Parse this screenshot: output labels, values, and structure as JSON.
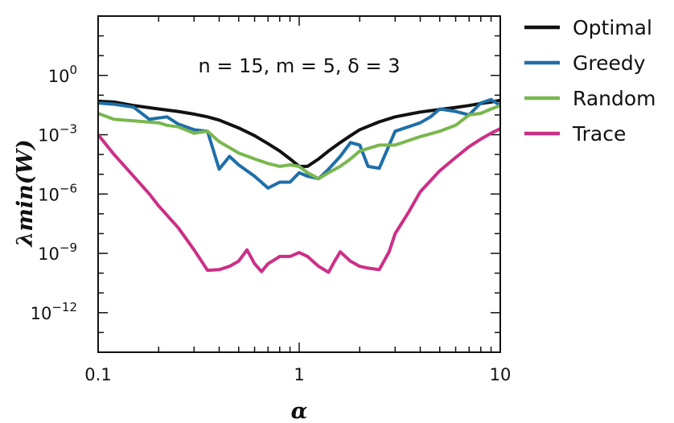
{
  "chart_data": {
    "type": "line",
    "xscale": "log",
    "yscale": "log",
    "xlim": [
      0.1,
      10
    ],
    "ylim": [
      1e-14,
      1000.0
    ],
    "xlabel": "α",
    "ylabel": "λmin(W)",
    "xticks": [
      {
        "value": 0.1,
        "label": "0.1"
      },
      {
        "value": 1,
        "label": "1"
      },
      {
        "value": 10,
        "label": "10"
      }
    ],
    "yticks": [
      {
        "value": 1,
        "mantissa": "10",
        "exponent": "0"
      },
      {
        "value": 0.001,
        "mantissa": "10",
        "exponent": "−3"
      },
      {
        "value": 1e-06,
        "mantissa": "10",
        "exponent": "−6"
      },
      {
        "value": 1e-09,
        "mantissa": "10",
        "exponent": "−9"
      },
      {
        "value": 1e-12,
        "mantissa": "10",
        "exponent": "−12"
      }
    ],
    "annotation": "n = 15, m = 5, δ = 3",
    "legend_position": "outside-right-top",
    "series": [
      {
        "name": "Optimal",
        "color": "#111111",
        "x": [
          0.1,
          0.12,
          0.15,
          0.2,
          0.25,
          0.3,
          0.35,
          0.4,
          0.5,
          0.6,
          0.7,
          0.8,
          0.9,
          1.0,
          1.1,
          1.25,
          1.4,
          1.6,
          1.8,
          2.0,
          2.5,
          3.0,
          4.0,
          5.0,
          6.0,
          7.0,
          8.0,
          9.0,
          10.0
        ],
        "y": [
          0.05,
          0.045,
          0.03,
          0.02,
          0.015,
          0.011,
          0.008,
          0.0055,
          0.0022,
          0.0009,
          0.00035,
          0.00015,
          6e-05,
          2.5e-05,
          2.5e-05,
          6e-05,
          0.00015,
          0.0004,
          0.0009,
          0.0018,
          0.0045,
          0.008,
          0.014,
          0.019,
          0.024,
          0.03,
          0.038,
          0.045,
          0.055
        ]
      },
      {
        "name": "Greedy",
        "color": "#1f6fa8",
        "x": [
          0.1,
          0.12,
          0.15,
          0.18,
          0.2,
          0.22,
          0.25,
          0.3,
          0.35,
          0.4,
          0.45,
          0.5,
          0.6,
          0.7,
          0.8,
          0.9,
          1.0,
          1.1,
          1.25,
          1.4,
          1.6,
          1.8,
          2.0,
          2.2,
          2.5,
          3.0,
          4.0,
          4.5,
          5.0,
          6.0,
          7.0,
          8.0,
          9.0,
          10.0
        ],
        "y": [
          0.04,
          0.035,
          0.025,
          0.006,
          0.007,
          0.008,
          0.0035,
          0.0018,
          0.0015,
          1.8e-05,
          8e-05,
          3e-05,
          8e-06,
          2e-06,
          4e-06,
          4e-06,
          1.2e-05,
          8e-06,
          6e-06,
          1.8e-05,
          8e-05,
          0.0004,
          0.0003,
          2.5e-05,
          2e-05,
          0.0015,
          0.004,
          0.008,
          0.02,
          0.015,
          0.01,
          0.04,
          0.06,
          0.03
        ]
      },
      {
        "name": "Random",
        "color": "#79b74e",
        "x": [
          0.1,
          0.12,
          0.15,
          0.2,
          0.22,
          0.25,
          0.3,
          0.35,
          0.4,
          0.5,
          0.6,
          0.7,
          0.8,
          0.9,
          1.0,
          1.1,
          1.25,
          1.4,
          1.6,
          1.8,
          2.0,
          2.5,
          3.0,
          4.0,
          5.0,
          6.0,
          7.0,
          8.0,
          9.0,
          10.0
        ],
        "y": [
          0.012,
          0.006,
          0.005,
          0.004,
          0.003,
          0.0025,
          0.0012,
          0.0015,
          0.00045,
          0.00012,
          6e-05,
          3.5e-05,
          2.5e-05,
          3e-05,
          2.5e-05,
          1.2e-05,
          6e-06,
          1.2e-05,
          2.5e-05,
          6e-05,
          0.00015,
          0.0003,
          0.0003,
          0.0008,
          0.0015,
          0.003,
          0.01,
          0.012,
          0.02,
          0.03
        ]
      },
      {
        "name": "Trace",
        "color": "#cc2f86",
        "x": [
          0.1,
          0.12,
          0.15,
          0.18,
          0.2,
          0.25,
          0.3,
          0.35,
          0.4,
          0.45,
          0.5,
          0.55,
          0.6,
          0.65,
          0.7,
          0.8,
          0.9,
          1.0,
          1.1,
          1.25,
          1.4,
          1.5,
          1.6,
          1.8,
          2.0,
          2.2,
          2.5,
          2.8,
          3.0,
          3.5,
          4.0,
          5.0,
          6.0,
          7.0,
          8.0,
          9.0,
          10.0
        ],
        "y": [
          0.001,
          0.0001,
          8e-06,
          1e-06,
          2.5e-07,
          2e-08,
          1.5e-09,
          1.4e-10,
          1.5e-10,
          2.2e-10,
          4e-10,
          1.5e-09,
          3e-10,
          1.2e-10,
          3e-10,
          7e-10,
          7e-10,
          1.1e-09,
          7e-10,
          2.2e-10,
          1.1e-10,
          4e-10,
          1.2e-09,
          4e-10,
          2.2e-10,
          1.8e-10,
          1.5e-10,
          1.2e-09,
          1e-08,
          1.2e-07,
          1.3e-06,
          1.5e-05,
          7e-05,
          0.00025,
          0.0006,
          0.0012,
          0.002
        ]
      }
    ]
  }
}
